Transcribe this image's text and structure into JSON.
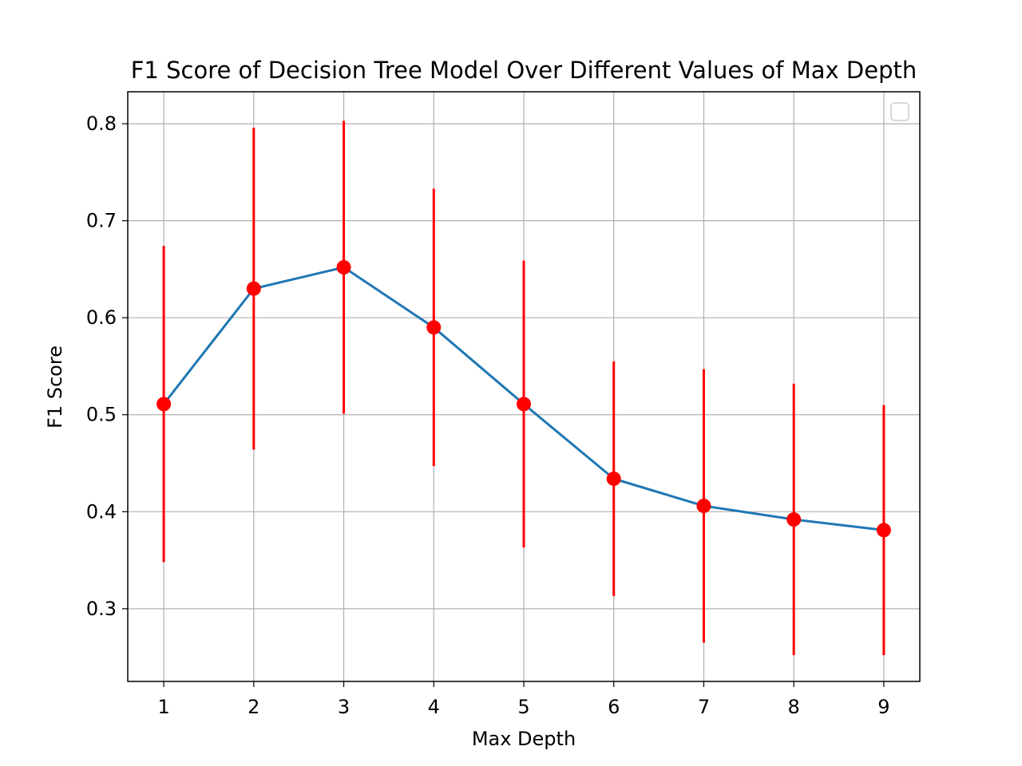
{
  "chart_data": {
    "type": "line",
    "title": "F1 Score of Decision Tree Model Over Different Values of Max Depth",
    "xlabel": "Max Depth",
    "ylabel": "F1 Score",
    "xlim": [
      0.6,
      9.4
    ],
    "ylim": [
      0.225,
      0.833
    ],
    "grid": true,
    "legend": "top-right, empty",
    "x_ticks": [
      1,
      2,
      3,
      4,
      5,
      6,
      7,
      8,
      9
    ],
    "y_ticks": [
      0.3,
      0.4,
      0.5,
      0.6,
      0.7,
      0.8
    ],
    "series": [
      {
        "x": [
          1,
          2,
          3,
          4,
          5,
          6,
          7,
          8,
          9
        ],
        "y": [
          0.511,
          0.63,
          0.652,
          0.59,
          0.511,
          0.434,
          0.406,
          0.392,
          0.381
        ],
        "yerr": [
          0.163,
          0.166,
          0.151,
          0.143,
          0.148,
          0.121,
          0.141,
          0.14,
          0.129
        ],
        "line_color": "#1f77b4",
        "marker_color": "#ff0000",
        "errorbar_color": "#ff0000"
      }
    ]
  }
}
